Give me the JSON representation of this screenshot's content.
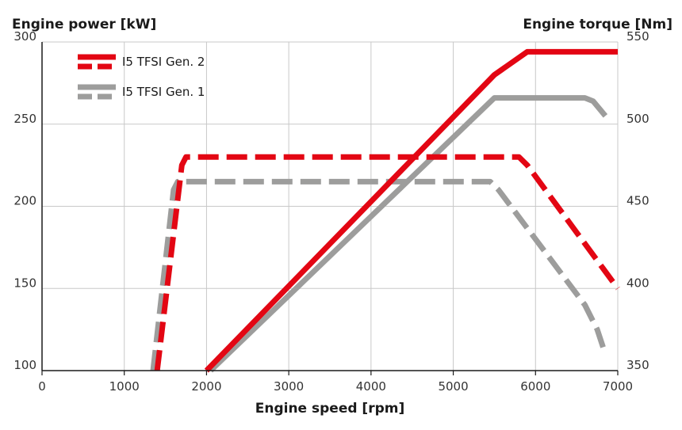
{
  "chart_data": {
    "type": "line",
    "xlabel": "Engine speed [rpm]",
    "ylabel_left": "Engine power [kW]",
    "ylabel_right": "Engine torque [Nm]",
    "xlim": [
      0,
      7000
    ],
    "ylim_left": [
      100,
      300
    ],
    "ylim_right": [
      350,
      550
    ],
    "x_ticks": [
      0,
      1000,
      2000,
      3000,
      4000,
      5000,
      6000,
      7000
    ],
    "y_left_ticks": [
      100,
      150,
      200,
      250,
      300
    ],
    "y_right_ticks": [
      350,
      400,
      450,
      500,
      550
    ],
    "grid": true,
    "legend_position": "top-left",
    "colors": {
      "gen2": "#e30613",
      "gen1": "#9d9d9c",
      "grid": "#c8c8c8",
      "axis": "#1a1a1a"
    },
    "legend": [
      {
        "label": "I5 TFSI Gen. 2",
        "color": "#e30613"
      },
      {
        "label": "I5 TFSI Gen. 1",
        "color": "#9d9d9c"
      }
    ],
    "series": [
      {
        "model": "gen2",
        "quantity": "power",
        "axis": "left",
        "style": "solid",
        "x": [
          2000,
          5500,
          5900,
          7000
        ],
        "y": [
          100,
          280,
          294,
          294
        ]
      },
      {
        "model": "gen1",
        "quantity": "power",
        "axis": "left",
        "style": "solid",
        "x": [
          2050,
          5500,
          6600,
          6700,
          6850
        ],
        "y": [
          100,
          266,
          266,
          264,
          255
        ]
      },
      {
        "model": "gen2",
        "quantity": "torque",
        "axis": "right",
        "style": "dashed",
        "x": [
          1400,
          1700,
          1750,
          5800,
          5900,
          7000
        ],
        "y": [
          350,
          475,
          480,
          480,
          475,
          400
        ]
      },
      {
        "model": "gen1",
        "quantity": "torque",
        "axis": "right",
        "style": "dashed",
        "x": [
          1350,
          1600,
          1650,
          5450,
          5550,
          6600,
          6750,
          6850
        ],
        "y": [
          350,
          460,
          465,
          465,
          460,
          390,
          375,
          360
        ]
      }
    ]
  }
}
